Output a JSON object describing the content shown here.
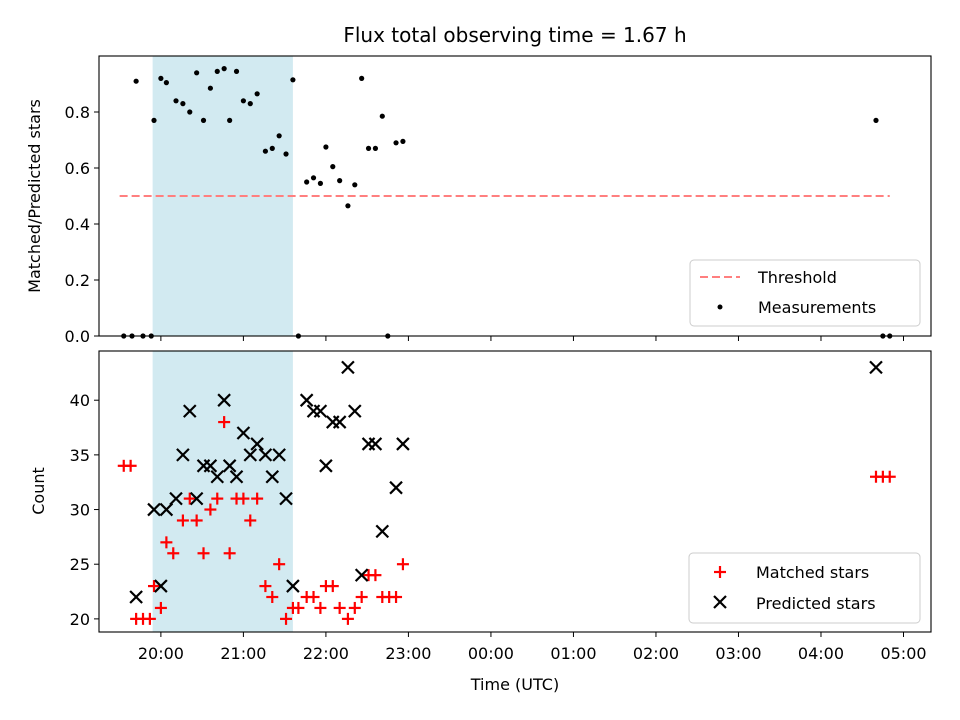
{
  "chart_data": [
    {
      "type": "scatter",
      "title": "Flux total observing time = 1.67 h",
      "xlabel": "",
      "ylabel": "Matched/Predicted stars",
      "ylim": [
        0,
        1.0
      ],
      "yticks": [
        "0.0",
        "0.2",
        "0.4",
        "0.6",
        "0.8"
      ],
      "xaxis_ticks_hidden": true,
      "shaded_span": {
        "start": "19:54",
        "end": "21:36",
        "color": "#add8e6"
      },
      "legend_position": "lower-right",
      "threshold": {
        "name": "Threshold",
        "value": 0.5,
        "x_range": [
          "19:30",
          "04:50"
        ],
        "color": "#ff7f7f"
      },
      "series": [
        {
          "name": "Measurements",
          "color": "#000000",
          "points": [
            [
              "19:33",
              0.0
            ],
            [
              "19:39",
              0.0
            ],
            [
              "19:42",
              0.91
            ],
            [
              "19:47",
              0.0
            ],
            [
              "19:53",
              0.0
            ],
            [
              "19:55",
              0.77
            ],
            [
              "20:00",
              0.92
            ],
            [
              "20:04",
              0.905
            ],
            [
              "20:11",
              0.84
            ],
            [
              "20:16",
              0.83
            ],
            [
              "20:21",
              0.8
            ],
            [
              "20:26",
              0.94
            ],
            [
              "20:31",
              0.77
            ],
            [
              "20:36",
              0.885
            ],
            [
              "20:41",
              0.945
            ],
            [
              "20:46",
              0.955
            ],
            [
              "20:50",
              0.77
            ],
            [
              "20:55",
              0.945
            ],
            [
              "21:00",
              0.84
            ],
            [
              "21:05",
              0.83
            ],
            [
              "21:10",
              0.865
            ],
            [
              "21:16",
              0.66
            ],
            [
              "21:21",
              0.67
            ],
            [
              "21:26",
              0.715
            ],
            [
              "21:31",
              0.65
            ],
            [
              "21:36",
              0.915
            ],
            [
              "21:40",
              0.0
            ],
            [
              "21:46",
              0.55
            ],
            [
              "21:51",
              0.565
            ],
            [
              "21:56",
              0.545
            ],
            [
              "22:00",
              0.675
            ],
            [
              "22:05",
              0.605
            ],
            [
              "22:10",
              0.555
            ],
            [
              "22:16",
              0.465
            ],
            [
              "22:21",
              0.54
            ],
            [
              "22:26",
              0.92
            ],
            [
              "22:31",
              0.67
            ],
            [
              "22:36",
              0.67
            ],
            [
              "22:41",
              0.785
            ],
            [
              "22:45",
              0.0
            ],
            [
              "22:51",
              0.69
            ],
            [
              "22:56",
              0.695
            ],
            [
              "04:40",
              0.77
            ],
            [
              "04:45",
              0.0
            ],
            [
              "04:50",
              0.0
            ]
          ]
        }
      ]
    },
    {
      "type": "scatter",
      "title": "",
      "xlabel": "Time (UTC)",
      "ylabel": "Count",
      "ylim": [
        18.8,
        44.5
      ],
      "yticks": [
        "20",
        "25",
        "30",
        "35",
        "40"
      ],
      "xlim": [
        "19:15",
        "05:20"
      ],
      "xticks": [
        "20:00",
        "21:00",
        "22:00",
        "23:00",
        "00:00",
        "01:00",
        "02:00",
        "03:00",
        "04:00",
        "05:00"
      ],
      "shaded_span": {
        "start": "19:54",
        "end": "21:36",
        "color": "#add8e6"
      },
      "legend_position": "lower-right",
      "series": [
        {
          "name": "Matched stars",
          "marker": "plus",
          "color": "#ff0000",
          "points": [
            [
              "19:33",
              34
            ],
            [
              "19:38",
              34
            ],
            [
              "19:42",
              20
            ],
            [
              "19:47",
              20
            ],
            [
              "19:52",
              20
            ],
            [
              "19:55",
              23
            ],
            [
              "20:00",
              21
            ],
            [
              "20:04",
              27
            ],
            [
              "20:09",
              26
            ],
            [
              "20:16",
              29
            ],
            [
              "20:21",
              31
            ],
            [
              "20:26",
              29
            ],
            [
              "20:31",
              26
            ],
            [
              "20:36",
              30
            ],
            [
              "20:41",
              31
            ],
            [
              "20:46",
              38
            ],
            [
              "20:50",
              26
            ],
            [
              "20:55",
              31
            ],
            [
              "21:00",
              31
            ],
            [
              "21:05",
              29
            ],
            [
              "21:10",
              31
            ],
            [
              "21:16",
              23
            ],
            [
              "21:21",
              22
            ],
            [
              "21:26",
              25
            ],
            [
              "21:31",
              20
            ],
            [
              "21:36",
              21
            ],
            [
              "21:40",
              21
            ],
            [
              "21:46",
              22
            ],
            [
              "21:51",
              22
            ],
            [
              "21:56",
              21
            ],
            [
              "22:00",
              23
            ],
            [
              "22:05",
              23
            ],
            [
              "22:10",
              21
            ],
            [
              "22:16",
              20
            ],
            [
              "22:21",
              21
            ],
            [
              "22:26",
              22
            ],
            [
              "22:31",
              24
            ],
            [
              "22:36",
              24
            ],
            [
              "22:41",
              22
            ],
            [
              "22:46",
              22
            ],
            [
              "22:51",
              22
            ],
            [
              "22:56",
              25
            ],
            [
              "04:40",
              33
            ],
            [
              "04:45",
              33
            ],
            [
              "04:50",
              33
            ]
          ]
        },
        {
          "name": "Predicted stars",
          "marker": "x",
          "color": "#000000",
          "points": [
            [
              "19:42",
              22
            ],
            [
              "19:55",
              30
            ],
            [
              "20:00",
              23
            ],
            [
              "20:04",
              30
            ],
            [
              "20:11",
              31
            ],
            [
              "20:16",
              35
            ],
            [
              "20:21",
              39
            ],
            [
              "20:26",
              31
            ],
            [
              "20:31",
              34
            ],
            [
              "20:36",
              34
            ],
            [
              "20:41",
              33
            ],
            [
              "20:46",
              40
            ],
            [
              "20:50",
              34
            ],
            [
              "20:55",
              33
            ],
            [
              "21:00",
              37
            ],
            [
              "21:05",
              35
            ],
            [
              "21:10",
              36
            ],
            [
              "21:16",
              35
            ],
            [
              "21:21",
              33
            ],
            [
              "21:26",
              35
            ],
            [
              "21:31",
              31
            ],
            [
              "21:36",
              23
            ],
            [
              "21:46",
              40
            ],
            [
              "21:51",
              39
            ],
            [
              "21:56",
              39
            ],
            [
              "22:00",
              34
            ],
            [
              "22:05",
              38
            ],
            [
              "22:10",
              38
            ],
            [
              "22:16",
              43
            ],
            [
              "22:21",
              39
            ],
            [
              "22:26",
              24
            ],
            [
              "22:31",
              36
            ],
            [
              "22:36",
              36
            ],
            [
              "22:41",
              28
            ],
            [
              "22:51",
              32
            ],
            [
              "22:56",
              36
            ],
            [
              "04:40",
              43
            ]
          ]
        }
      ]
    }
  ]
}
